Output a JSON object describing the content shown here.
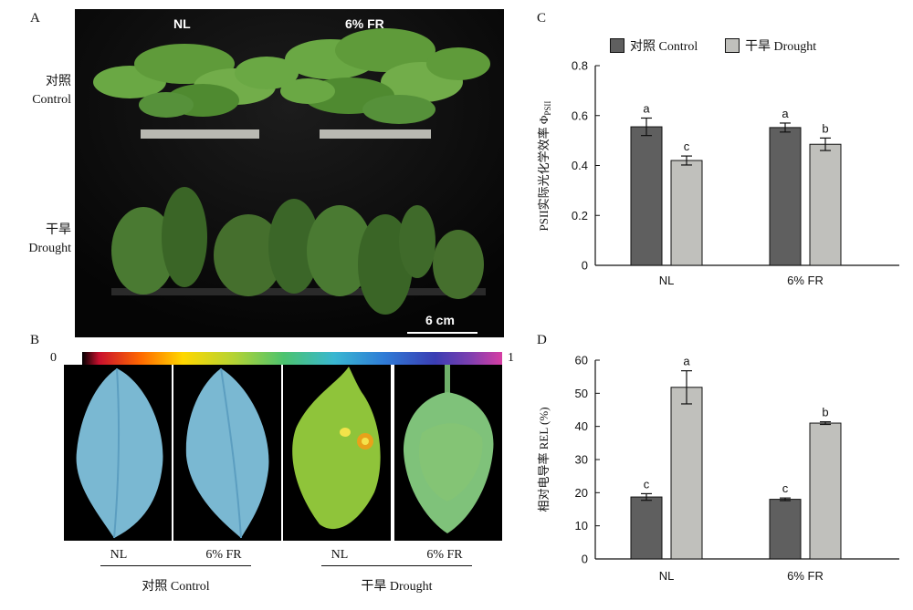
{
  "panels": {
    "a": {
      "letter": "A",
      "col_labels": [
        "NL",
        "6% FR"
      ],
      "row_labels": [
        {
          "zh": "对照",
          "en": "Control"
        },
        {
          "zh": "干旱",
          "en": "Drought"
        }
      ],
      "scale_bar": "6 cm"
    },
    "b": {
      "letter": "B",
      "colorbar_min": "0",
      "colorbar_max": "1",
      "leaf_labels": [
        "NL",
        "6% FR",
        "NL",
        "6% FR"
      ],
      "group_labels": [
        "对照 Control",
        "干旱 Drought"
      ]
    },
    "c": {
      "letter": "C"
    },
    "d": {
      "letter": "D"
    }
  },
  "colors": {
    "dark_bar": "#5f5f5f",
    "light_bar": "#c0c0bc",
    "control_leaf": "#7ab8d2",
    "drought_leaf_nl": "#8fc43a",
    "drought_leaf_fr": "#7fc27a"
  },
  "chart_data": [
    {
      "type": "bar",
      "panel": "C",
      "ylabel": "PSII实际光化学效率 Φ",
      "ylabel_sub": "PSII",
      "categories": [
        "NL",
        "6% FR"
      ],
      "legend": [
        "对照 Control",
        "干旱 Drought"
      ],
      "ylim": [
        0,
        0.8
      ],
      "yticks": [
        "0",
        "0.2",
        "0.4",
        "0.6",
        "0.8"
      ],
      "series": [
        {
          "name": "对照 Control",
          "values": [
            0.555,
            0.552
          ],
          "errors": [
            0.035,
            0.018
          ],
          "letters": [
            "a",
            "a"
          ]
        },
        {
          "name": "干旱 Drought",
          "values": [
            0.42,
            0.485
          ],
          "errors": [
            0.018,
            0.025
          ],
          "letters": [
            "c",
            "b"
          ]
        }
      ]
    },
    {
      "type": "bar",
      "panel": "D",
      "ylabel": "相对电导率 REL (%)",
      "categories": [
        "NL",
        "6% FR"
      ],
      "ylim": [
        0,
        60
      ],
      "yticks": [
        "0",
        "10",
        "20",
        "30",
        "40",
        "50",
        "60"
      ],
      "series": [
        {
          "name": "对照 Control",
          "values": [
            18.7,
            18.0
          ],
          "errors": [
            1.0,
            0.4
          ],
          "letters": [
            "c",
            "c"
          ]
        },
        {
          "name": "干旱 Drought",
          "values": [
            51.8,
            41.0
          ],
          "errors": [
            5.0,
            0.4
          ],
          "letters": [
            "a",
            "b"
          ]
        }
      ]
    }
  ]
}
